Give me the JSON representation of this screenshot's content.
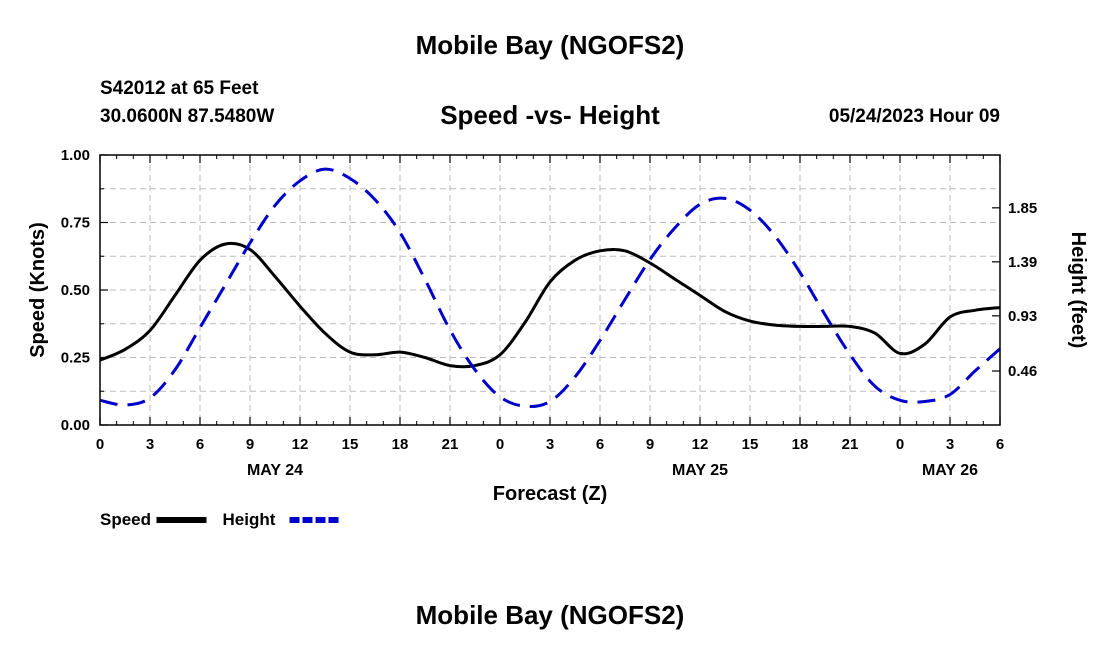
{
  "header": {
    "title": "Mobile Bay (NGOFS2)",
    "station": "S42012 at 65 Feet",
    "coords": "30.0600N  87.5480W",
    "subtitle": "Speed -vs- Height",
    "datetime": "05/24/2023 Hour 09"
  },
  "footer": {
    "title": "Mobile Bay (NGOFS2)"
  },
  "chart_data": {
    "type": "line",
    "xlabel": "Forecast (Z)",
    "ylabel_left": "Speed (Knots)",
    "ylabel_right": "Height (feet)",
    "x_range_hours": [
      0,
      54
    ],
    "x_tick_labels": [
      "0",
      "3",
      "6",
      "9",
      "12",
      "15",
      "18",
      "21",
      "0",
      "3",
      "6",
      "9",
      "12",
      "15",
      "18",
      "21",
      "0",
      "3",
      "6"
    ],
    "date_labels": [
      {
        "label": "MAY 24",
        "hour": 10.5
      },
      {
        "label": "MAY 25",
        "hour": 36
      },
      {
        "label": "MAY 26",
        "hour": 51
      }
    ],
    "y_left": {
      "range": [
        0,
        1
      ],
      "ticks": [
        "0.00",
        "0.25",
        "0.50",
        "0.75",
        "1.00"
      ],
      "tick_values": [
        0,
        0.25,
        0.5,
        0.75,
        1.0
      ]
    },
    "y_right": {
      "range": [
        0,
        2.3
      ],
      "ticks": [
        "0.46",
        "0.93",
        "1.39",
        "1.85"
      ],
      "tick_values": [
        0.46,
        0.93,
        1.39,
        1.85
      ]
    },
    "grid": true,
    "legend": [
      {
        "name": "Speed",
        "color": "#000000",
        "style": "solid"
      },
      {
        "name": "Height",
        "color": "#0000cc",
        "style": "dashed"
      }
    ],
    "series": [
      {
        "name": "Speed",
        "axis": "left",
        "color": "#000000",
        "style": "solid",
        "x": [
          0,
          1.5,
          3,
          4.5,
          6,
          7.5,
          9,
          10.5,
          12,
          13.5,
          15,
          16.5,
          18,
          19.5,
          21,
          22.5,
          24,
          25.5,
          27,
          28.5,
          30,
          31.5,
          33,
          34.5,
          36,
          37.5,
          39,
          40.5,
          42,
          43.5,
          45,
          46.5,
          48,
          49.5,
          51,
          52.5,
          54
        ],
        "values": [
          0.24,
          0.28,
          0.35,
          0.48,
          0.61,
          0.67,
          0.65,
          0.55,
          0.44,
          0.34,
          0.27,
          0.26,
          0.27,
          0.25,
          0.22,
          0.22,
          0.26,
          0.38,
          0.53,
          0.61,
          0.645,
          0.645,
          0.6,
          0.54,
          0.48,
          0.42,
          0.385,
          0.37,
          0.365,
          0.365,
          0.365,
          0.34,
          0.265,
          0.3,
          0.4,
          0.425,
          0.435
        ]
      },
      {
        "name": "Height",
        "axis": "right",
        "color": "#0000cc",
        "style": "dashed",
        "x": [
          0,
          1.5,
          3,
          4.5,
          6,
          7.5,
          9,
          10.5,
          12,
          13.5,
          15,
          16.5,
          18,
          19.5,
          21,
          22.5,
          24,
          25.5,
          27,
          28.5,
          30,
          31.5,
          33,
          34.5,
          36,
          37.5,
          39,
          40.5,
          42,
          43.5,
          45,
          46.5,
          48,
          49.5,
          51,
          52.5,
          54
        ],
        "values": [
          0.21,
          0.17,
          0.23,
          0.47,
          0.83,
          1.19,
          1.55,
          1.87,
          2.08,
          2.18,
          2.1,
          1.92,
          1.64,
          1.24,
          0.81,
          0.47,
          0.24,
          0.16,
          0.2,
          0.41,
          0.72,
          1.07,
          1.41,
          1.68,
          1.88,
          1.93,
          1.83,
          1.61,
          1.3,
          0.94,
          0.6,
          0.33,
          0.21,
          0.2,
          0.26,
          0.46,
          0.65
        ]
      }
    ]
  }
}
